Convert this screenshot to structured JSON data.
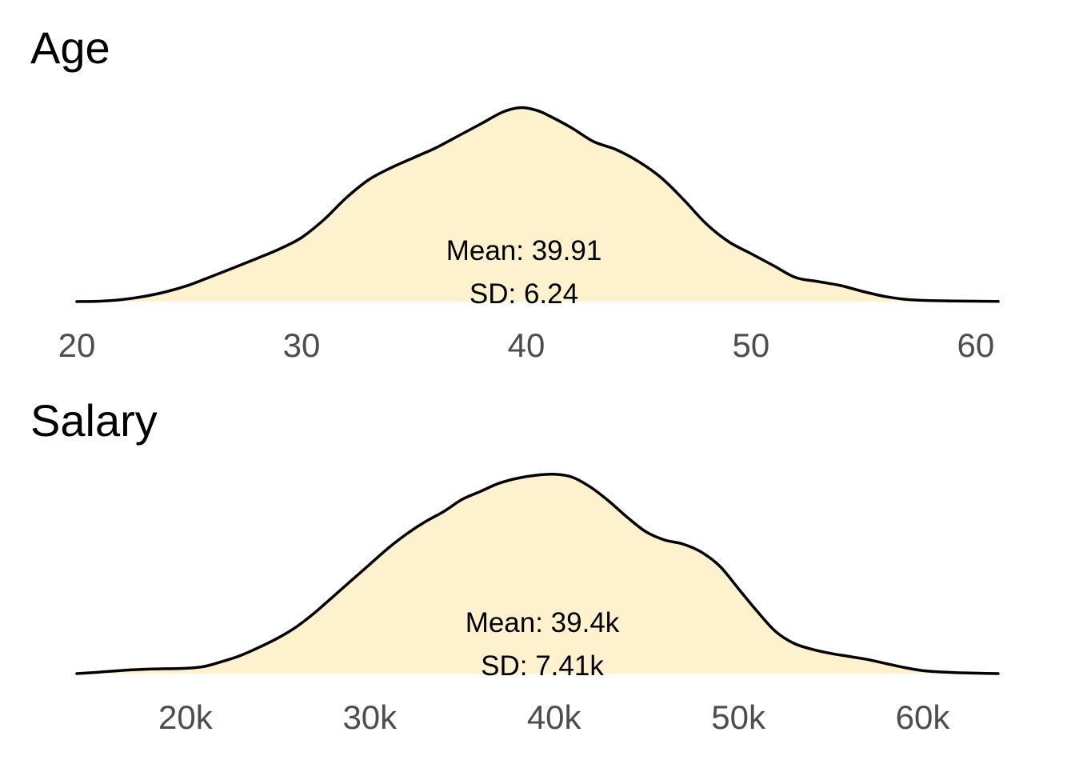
{
  "fill_color": "#fdf1ce",
  "line_color": "#000000",
  "tick_color": "#4d4d4d",
  "chart_data": [
    {
      "type": "area",
      "title": "Age",
      "xlim": [
        20,
        61
      ],
      "ticks": [
        {
          "value": 20,
          "label": "20"
        },
        {
          "value": 30,
          "label": "30"
        },
        {
          "value": 40,
          "label": "40"
        },
        {
          "value": 50,
          "label": "50"
        },
        {
          "value": 60,
          "label": "60"
        }
      ],
      "ylim": [
        0,
        1
      ],
      "density": {
        "x": [
          20,
          21,
          22,
          23,
          24,
          25,
          26,
          27,
          28,
          29,
          30,
          31,
          32,
          33,
          34,
          35,
          36,
          37,
          38,
          39,
          39.8,
          40.5,
          41,
          42,
          43,
          44,
          45,
          46,
          47,
          48,
          49,
          50,
          51,
          52,
          53,
          54,
          55,
          56,
          57,
          58,
          59,
          60,
          61
        ],
        "y": [
          0.0,
          0.002,
          0.01,
          0.026,
          0.05,
          0.083,
          0.126,
          0.17,
          0.215,
          0.262,
          0.32,
          0.41,
          0.52,
          0.61,
          0.67,
          0.72,
          0.77,
          0.83,
          0.89,
          0.95,
          0.97,
          0.955,
          0.93,
          0.87,
          0.8,
          0.76,
          0.7,
          0.62,
          0.51,
          0.39,
          0.3,
          0.24,
          0.18,
          0.12,
          0.1,
          0.08,
          0.05,
          0.025,
          0.01,
          0.005,
          0.003,
          0.002,
          0.001
        ]
      },
      "annotations": {
        "mean": "Mean: 39.91",
        "sd": "SD: 6.24"
      }
    },
    {
      "type": "area",
      "title": "Salary",
      "xlim": [
        14100,
        64100
      ],
      "ticks": [
        {
          "value": 20000,
          "label": "20k"
        },
        {
          "value": 30000,
          "label": "30k"
        },
        {
          "value": 40000,
          "label": "40k"
        },
        {
          "value": 50000,
          "label": "50k"
        },
        {
          "value": 60000,
          "label": "60k"
        }
      ],
      "ylim": [
        0,
        1
      ],
      "density": {
        "x": [
          14100,
          15000,
          16000,
          17000,
          18000,
          19000,
          20000,
          21000,
          22000,
          23000,
          24000,
          25000,
          26000,
          27000,
          28000,
          29000,
          30000,
          31000,
          32000,
          33000,
          34000,
          35000,
          36000,
          37000,
          38000,
          39000,
          40000,
          41000,
          42000,
          43000,
          44000,
          45000,
          46000,
          47000,
          48000,
          49000,
          50000,
          51000,
          52000,
          53000,
          54000,
          55000,
          56000,
          57000,
          58000,
          59000,
          60000,
          61000,
          62000,
          63000,
          64100
        ],
        "y": [
          0.0,
          0.005,
          0.012,
          0.018,
          0.022,
          0.024,
          0.026,
          0.035,
          0.06,
          0.09,
          0.13,
          0.175,
          0.23,
          0.3,
          0.38,
          0.46,
          0.54,
          0.62,
          0.69,
          0.75,
          0.8,
          0.86,
          0.9,
          0.94,
          0.965,
          0.98,
          0.985,
          0.97,
          0.92,
          0.85,
          0.77,
          0.7,
          0.66,
          0.64,
          0.6,
          0.53,
          0.42,
          0.31,
          0.21,
          0.15,
          0.12,
          0.1,
          0.085,
          0.07,
          0.05,
          0.03,
          0.015,
          0.008,
          0.004,
          0.002,
          0.0
        ]
      },
      "annotations": {
        "mean": "Mean: 39.4k",
        "sd": "SD: 7.41k"
      }
    }
  ]
}
